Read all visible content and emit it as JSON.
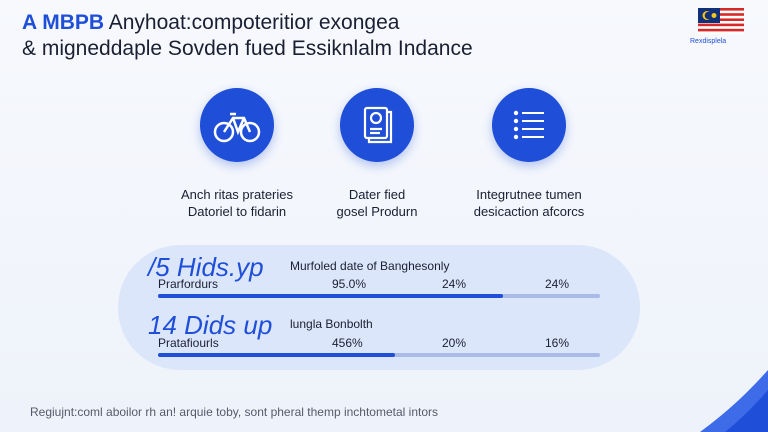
{
  "header": {
    "title_highlight": "A MBPB",
    "title_rest": "Anyhoat:compoteritior exongea",
    "subtitle": "& migneddaple Sovden fued Essiknlalm Indance",
    "flag_caption": "Rexdisplela"
  },
  "features": [
    {
      "line1": "Anch ritas prateries",
      "line2": "Datoriel to fidarin"
    },
    {
      "line1": "Dater fied",
      "line2": "gosel Produrn"
    },
    {
      "line1": "Integrutnee tumen",
      "line2": "desicaction afcorcs"
    }
  ],
  "stats": [
    {
      "headline": "/5 Hids.yp",
      "note": "Murfoled date of Banghesonly",
      "label": "Prarfordurs",
      "values": [
        "95.0%",
        "24%",
        "24%"
      ]
    },
    {
      "headline": "14 Dids up",
      "note": "lungla Bonbolth",
      "label": "Pratafiourls",
      "values": [
        "456%",
        "20%",
        "16%"
      ]
    }
  ],
  "footer": "Regiujnt:coml aboilor rh an! arquie toby, sont pheral themp inchtometal intors"
}
